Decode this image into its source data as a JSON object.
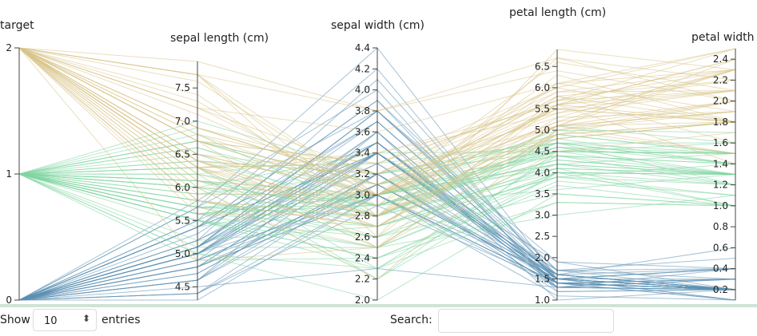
{
  "chart_data": {
    "type": "parallel_coordinates",
    "axes": [
      {
        "key": "target",
        "label": "target",
        "range": [
          0,
          2
        ],
        "ticks": [
          0,
          1,
          2
        ],
        "tick_labels": [
          "0",
          "1",
          "2"
        ]
      },
      {
        "key": "sepal_length",
        "label": "sepal length (cm)",
        "range": [
          4.3,
          7.9
        ],
        "ticks": [
          4.5,
          5.0,
          5.5,
          6.0,
          6.5,
          7.0,
          7.5
        ],
        "tick_labels": [
          "4.5",
          "5.0",
          "5.5",
          "6.0",
          "6.5",
          "7.0",
          "7.5"
        ]
      },
      {
        "key": "sepal_width",
        "label": "sepal width (cm)",
        "range": [
          2.0,
          4.4
        ],
        "ticks": [
          2.0,
          2.2,
          2.4,
          2.6,
          2.8,
          3.0,
          3.2,
          3.4,
          3.6,
          3.8,
          4.0,
          4.2,
          4.4
        ],
        "tick_labels": [
          "2.0",
          "2.2",
          "2.4",
          "2.6",
          "2.8",
          "3.0",
          "3.2",
          "3.4",
          "3.6",
          "3.8",
          "4.0",
          "4.2",
          "4.4"
        ]
      },
      {
        "key": "petal_length",
        "label": "petal length (cm)",
        "range": [
          1.0,
          6.9
        ],
        "ticks": [
          1.0,
          1.5,
          2.0,
          2.5,
          3.0,
          3.5,
          4.0,
          4.5,
          5.0,
          5.5,
          6.0,
          6.5
        ],
        "tick_labels": [
          "1.0",
          "1.5",
          "2.0",
          "2.5",
          "3.0",
          "3.5",
          "4.0",
          "4.5",
          "5.0",
          "5.5",
          "6.0",
          "6.5"
        ]
      },
      {
        "key": "petal_width",
        "label": "petal width",
        "range": [
          0.1,
          2.5
        ],
        "ticks": [
          0.2,
          0.4,
          0.6,
          0.8,
          1.0,
          1.2,
          1.4,
          1.6,
          1.8,
          2.0,
          2.2,
          2.4
        ],
        "tick_labels": [
          "0.2",
          "0.4",
          "0.6",
          "0.8",
          "1.0",
          "1.2",
          "1.4",
          "1.6",
          "1.8",
          "2.0",
          "2.2",
          "2.4"
        ]
      }
    ],
    "color_by": "target",
    "colors": {
      "0": "#5b8fb3",
      "1": "#7fd6a0",
      "2": "#d9c58a"
    },
    "records": [
      [
        0,
        5.1,
        3.5,
        1.4,
        0.2
      ],
      [
        0,
        4.9,
        3.0,
        1.4,
        0.2
      ],
      [
        0,
        4.7,
        3.2,
        1.3,
        0.2
      ],
      [
        0,
        4.6,
        3.1,
        1.5,
        0.2
      ],
      [
        0,
        5.0,
        3.6,
        1.4,
        0.2
      ],
      [
        0,
        5.4,
        3.9,
        1.7,
        0.4
      ],
      [
        0,
        4.6,
        3.4,
        1.4,
        0.3
      ],
      [
        0,
        5.0,
        3.4,
        1.5,
        0.2
      ],
      [
        0,
        4.4,
        2.9,
        1.4,
        0.2
      ],
      [
        0,
        4.9,
        3.1,
        1.5,
        0.1
      ],
      [
        0,
        5.4,
        3.7,
        1.5,
        0.2
      ],
      [
        0,
        4.8,
        3.4,
        1.6,
        0.2
      ],
      [
        0,
        4.8,
        3.0,
        1.4,
        0.1
      ],
      [
        0,
        4.3,
        3.0,
        1.1,
        0.1
      ],
      [
        0,
        5.8,
        4.0,
        1.2,
        0.2
      ],
      [
        0,
        5.7,
        4.4,
        1.5,
        0.4
      ],
      [
        0,
        5.4,
        3.9,
        1.3,
        0.4
      ],
      [
        0,
        5.1,
        3.5,
        1.4,
        0.3
      ],
      [
        0,
        5.7,
        3.8,
        1.7,
        0.3
      ],
      [
        0,
        5.1,
        3.8,
        1.5,
        0.3
      ],
      [
        0,
        5.4,
        3.4,
        1.7,
        0.2
      ],
      [
        0,
        5.1,
        3.7,
        1.5,
        0.4
      ],
      [
        0,
        4.6,
        3.6,
        1.0,
        0.2
      ],
      [
        0,
        5.1,
        3.3,
        1.7,
        0.5
      ],
      [
        0,
        4.8,
        3.4,
        1.9,
        0.2
      ],
      [
        0,
        5.0,
        3.0,
        1.6,
        0.2
      ],
      [
        0,
        5.0,
        3.4,
        1.6,
        0.4
      ],
      [
        0,
        5.2,
        3.5,
        1.5,
        0.2
      ],
      [
        0,
        5.2,
        3.4,
        1.4,
        0.2
      ],
      [
        0,
        4.7,
        3.2,
        1.6,
        0.2
      ],
      [
        0,
        4.8,
        3.1,
        1.6,
        0.2
      ],
      [
        0,
        5.4,
        3.4,
        1.5,
        0.4
      ],
      [
        0,
        5.2,
        4.1,
        1.5,
        0.1
      ],
      [
        0,
        5.5,
        4.2,
        1.4,
        0.2
      ],
      [
        0,
        4.9,
        3.1,
        1.5,
        0.2
      ],
      [
        0,
        5.0,
        3.2,
        1.2,
        0.2
      ],
      [
        0,
        5.5,
        3.5,
        1.3,
        0.2
      ],
      [
        0,
        4.9,
        3.6,
        1.4,
        0.1
      ],
      [
        0,
        4.4,
        3.0,
        1.3,
        0.2
      ],
      [
        0,
        5.1,
        3.4,
        1.5,
        0.2
      ],
      [
        0,
        5.0,
        3.5,
        1.3,
        0.3
      ],
      [
        0,
        4.5,
        2.3,
        1.3,
        0.3
      ],
      [
        0,
        4.4,
        3.2,
        1.3,
        0.2
      ],
      [
        0,
        5.0,
        3.5,
        1.6,
        0.6
      ],
      [
        0,
        5.1,
        3.8,
        1.9,
        0.4
      ],
      [
        0,
        4.8,
        3.0,
        1.4,
        0.3
      ],
      [
        0,
        5.1,
        3.8,
        1.6,
        0.2
      ],
      [
        0,
        4.6,
        3.2,
        1.4,
        0.2
      ],
      [
        0,
        5.3,
        3.7,
        1.5,
        0.2
      ],
      [
        0,
        5.0,
        3.3,
        1.4,
        0.2
      ],
      [
        1,
        7.0,
        3.2,
        4.7,
        1.4
      ],
      [
        1,
        6.4,
        3.2,
        4.5,
        1.5
      ],
      [
        1,
        6.9,
        3.1,
        4.9,
        1.5
      ],
      [
        1,
        5.5,
        2.3,
        4.0,
        1.3
      ],
      [
        1,
        6.5,
        2.8,
        4.6,
        1.5
      ],
      [
        1,
        5.7,
        2.8,
        4.5,
        1.3
      ],
      [
        1,
        6.3,
        3.3,
        4.7,
        1.6
      ],
      [
        1,
        4.9,
        2.4,
        3.3,
        1.0
      ],
      [
        1,
        6.6,
        2.9,
        4.6,
        1.3
      ],
      [
        1,
        5.2,
        2.7,
        3.9,
        1.4
      ],
      [
        1,
        5.0,
        2.0,
        3.5,
        1.0
      ],
      [
        1,
        5.9,
        3.0,
        4.2,
        1.5
      ],
      [
        1,
        6.0,
        2.2,
        4.0,
        1.0
      ],
      [
        1,
        6.1,
        2.9,
        4.7,
        1.4
      ],
      [
        1,
        5.6,
        2.9,
        3.6,
        1.3
      ],
      [
        1,
        6.7,
        3.1,
        4.4,
        1.4
      ],
      [
        1,
        5.6,
        3.0,
        4.5,
        1.5
      ],
      [
        1,
        5.8,
        2.7,
        4.1,
        1.0
      ],
      [
        1,
        6.2,
        2.2,
        4.5,
        1.5
      ],
      [
        1,
        5.6,
        2.5,
        3.9,
        1.1
      ],
      [
        1,
        5.9,
        3.2,
        4.8,
        1.8
      ],
      [
        1,
        6.1,
        2.8,
        4.0,
        1.3
      ],
      [
        1,
        6.3,
        2.5,
        4.9,
        1.5
      ],
      [
        1,
        6.1,
        2.8,
        4.7,
        1.2
      ],
      [
        1,
        6.4,
        2.9,
        4.3,
        1.3
      ],
      [
        1,
        6.6,
        3.0,
        4.4,
        1.4
      ],
      [
        1,
        6.8,
        2.8,
        4.8,
        1.4
      ],
      [
        1,
        6.7,
        3.0,
        5.0,
        1.7
      ],
      [
        1,
        6.0,
        2.9,
        4.5,
        1.5
      ],
      [
        1,
        5.7,
        2.6,
        3.5,
        1.0
      ],
      [
        1,
        5.5,
        2.4,
        3.8,
        1.1
      ],
      [
        1,
        5.5,
        2.4,
        3.7,
        1.0
      ],
      [
        1,
        5.8,
        2.7,
        3.9,
        1.2
      ],
      [
        1,
        6.0,
        2.7,
        5.1,
        1.6
      ],
      [
        1,
        5.4,
        3.0,
        4.5,
        1.5
      ],
      [
        1,
        6.0,
        3.4,
        4.5,
        1.6
      ],
      [
        1,
        6.7,
        3.1,
        4.7,
        1.5
      ],
      [
        1,
        6.3,
        2.3,
        4.4,
        1.3
      ],
      [
        1,
        5.6,
        3.0,
        4.1,
        1.3
      ],
      [
        1,
        5.5,
        2.5,
        4.0,
        1.3
      ],
      [
        1,
        5.5,
        2.6,
        4.4,
        1.2
      ],
      [
        1,
        6.1,
        3.0,
        4.6,
        1.4
      ],
      [
        1,
        5.8,
        2.6,
        4.0,
        1.2
      ],
      [
        1,
        5.0,
        2.3,
        3.3,
        1.0
      ],
      [
        1,
        5.6,
        2.7,
        4.2,
        1.3
      ],
      [
        1,
        5.7,
        3.0,
        4.2,
        1.2
      ],
      [
        1,
        5.7,
        2.9,
        4.2,
        1.3
      ],
      [
        1,
        6.2,
        2.9,
        4.3,
        1.3
      ],
      [
        1,
        5.1,
        2.5,
        3.0,
        1.1
      ],
      [
        1,
        5.7,
        2.8,
        4.1,
        1.3
      ],
      [
        2,
        6.3,
        3.3,
        6.0,
        2.5
      ],
      [
        2,
        5.8,
        2.7,
        5.1,
        1.9
      ],
      [
        2,
        7.1,
        3.0,
        5.9,
        2.1
      ],
      [
        2,
        6.3,
        2.9,
        5.6,
        1.8
      ],
      [
        2,
        6.5,
        3.0,
        5.8,
        2.2
      ],
      [
        2,
        7.6,
        3.0,
        6.6,
        2.1
      ],
      [
        2,
        4.9,
        2.5,
        4.5,
        1.7
      ],
      [
        2,
        7.3,
        2.9,
        6.3,
        1.8
      ],
      [
        2,
        6.7,
        2.5,
        5.8,
        1.8
      ],
      [
        2,
        7.2,
        3.6,
        6.1,
        2.5
      ],
      [
        2,
        6.5,
        3.2,
        5.1,
        2.0
      ],
      [
        2,
        6.4,
        2.7,
        5.3,
        1.9
      ],
      [
        2,
        6.8,
        3.0,
        5.5,
        2.1
      ],
      [
        2,
        5.7,
        2.5,
        5.0,
        2.0
      ],
      [
        2,
        5.8,
        2.8,
        5.1,
        2.4
      ],
      [
        2,
        6.4,
        3.2,
        5.3,
        2.3
      ],
      [
        2,
        6.5,
        3.0,
        5.5,
        1.8
      ],
      [
        2,
        7.7,
        3.8,
        6.7,
        2.2
      ],
      [
        2,
        7.7,
        2.6,
        6.9,
        2.3
      ],
      [
        2,
        6.0,
        2.2,
        5.0,
        1.5
      ],
      [
        2,
        6.9,
        3.2,
        5.7,
        2.3
      ],
      [
        2,
        5.6,
        2.8,
        4.9,
        2.0
      ],
      [
        2,
        7.7,
        2.8,
        6.7,
        2.0
      ],
      [
        2,
        6.3,
        2.7,
        4.9,
        1.8
      ],
      [
        2,
        6.7,
        3.3,
        5.7,
        2.1
      ],
      [
        2,
        7.2,
        3.2,
        6.0,
        1.8
      ],
      [
        2,
        6.2,
        2.8,
        4.8,
        1.8
      ],
      [
        2,
        6.1,
        3.0,
        4.9,
        1.8
      ],
      [
        2,
        6.4,
        2.8,
        5.6,
        2.1
      ],
      [
        2,
        7.2,
        3.0,
        5.8,
        1.6
      ],
      [
        2,
        7.4,
        2.8,
        6.1,
        1.9
      ],
      [
        2,
        7.9,
        3.8,
        6.4,
        2.0
      ],
      [
        2,
        6.4,
        2.8,
        5.6,
        2.2
      ],
      [
        2,
        6.3,
        2.8,
        5.1,
        1.5
      ],
      [
        2,
        6.1,
        2.6,
        5.6,
        1.4
      ],
      [
        2,
        7.7,
        3.0,
        6.1,
        2.3
      ],
      [
        2,
        6.3,
        3.4,
        5.6,
        2.4
      ],
      [
        2,
        6.4,
        3.1,
        5.5,
        1.8
      ],
      [
        2,
        6.0,
        3.0,
        4.8,
        1.8
      ],
      [
        2,
        6.9,
        3.1,
        5.4,
        2.1
      ],
      [
        2,
        6.7,
        3.1,
        5.6,
        2.4
      ],
      [
        2,
        6.9,
        3.1,
        5.1,
        2.3
      ],
      [
        2,
        5.8,
        2.7,
        5.1,
        1.9
      ],
      [
        2,
        6.8,
        3.2,
        5.9,
        2.3
      ],
      [
        2,
        6.7,
        3.3,
        5.7,
        2.5
      ],
      [
        2,
        6.7,
        3.0,
        5.2,
        2.3
      ],
      [
        2,
        6.3,
        2.5,
        5.0,
        1.9
      ],
      [
        2,
        6.5,
        3.0,
        5.2,
        2.0
      ],
      [
        2,
        6.2,
        3.4,
        5.4,
        2.3
      ],
      [
        2,
        5.9,
        3.0,
        5.1,
        1.8
      ]
    ]
  },
  "controls": {
    "show_label": "Show",
    "page_length_value": "10",
    "entries_label": "entries",
    "search_label": "Search:",
    "search_value": ""
  }
}
